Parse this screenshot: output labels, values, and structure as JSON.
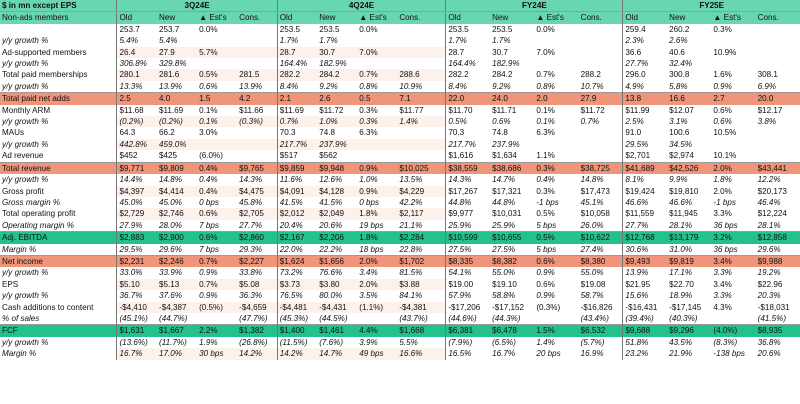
{
  "header": {
    "corner": "$ in mn except EPS",
    "groups": [
      "3Q24E",
      "4Q24E",
      "FY24E",
      "FY25E"
    ],
    "cols": [
      "Old",
      "New",
      "▲ Est's",
      "Cons."
    ]
  },
  "rows": [
    {
      "label": "Non-ads members",
      "style": "normal",
      "v": [
        "253.7",
        "253.7",
        "0.0%",
        "",
        "253.5",
        "253.5",
        "0.0%",
        "",
        "253.5",
        "253.5",
        "0.0%",
        "",
        "259.4",
        "260.2",
        "0.3%",
        ""
      ]
    },
    {
      "label": "y/y growth %",
      "style": "growth",
      "v": [
        "5.4%",
        "5.4%",
        "",
        "",
        "1.7%",
        "1.7%",
        "",
        "",
        "1.7%",
        "1.7%",
        "",
        "",
        "2.3%",
        "2.6%",
        "",
        ""
      ]
    },
    {
      "label": "Ad-supported members",
      "style": "normal",
      "v": [
        "26.4",
        "27.9",
        "5.7%",
        "",
        "28.7",
        "30.7",
        "7.0%",
        "",
        "28.7",
        "30.7",
        "7.0%",
        "",
        "36.6",
        "40.6",
        "10.9%",
        ""
      ]
    },
    {
      "label": "y/y growth %",
      "style": "growth",
      "v": [
        "306.8%",
        "329.8%",
        "",
        "",
        "164.4%",
        "182.9%",
        "",
        "",
        "164.4%",
        "182.9%",
        "",
        "",
        "27.7%",
        "32.4%",
        "",
        ""
      ]
    },
    {
      "label": "Total paid memberships",
      "style": "normal",
      "v": [
        "280.1",
        "281.6",
        "0.5%",
        "281.5",
        "282.2",
        "284.2",
        "0.7%",
        "288.6",
        "282.2",
        "284.2",
        "0.7%",
        "288.2",
        "296.0",
        "300.8",
        "1.6%",
        "308.1"
      ]
    },
    {
      "label": "y/y growth %",
      "style": "growth",
      "v": [
        "13.3%",
        "13.9%",
        "0.6%",
        "13.9%",
        "8.4%",
        "9.2%",
        "0.8%",
        "10.9%",
        "8.4%",
        "9.2%",
        "0.8%",
        "10.7%",
        "4.9%",
        "5.8%",
        "0.9%",
        "6.9%"
      ]
    },
    {
      "label": "Total paid net adds",
      "style": "hl-orange",
      "v": [
        "2.5",
        "4.0",
        "1.5",
        "4.2",
        "2.1",
        "2.6",
        "0.5",
        "7.1",
        "22.0",
        "24.0",
        "2.0",
        "27.9",
        "13.8",
        "16.6",
        "2.7",
        "20.0"
      ]
    },
    {
      "label": "Monthly ARM",
      "style": "normal",
      "v": [
        "$11.68",
        "$11.69",
        "0.1%",
        "$11.66",
        "$11.69",
        "$11.72",
        "0.3%",
        "$11.77",
        "$11.70",
        "$11.71",
        "0.1%",
        "$11.72",
        "$11.99",
        "$12.07",
        "0.6%",
        "$12.17"
      ]
    },
    {
      "label": "y/y growth %",
      "style": "growth",
      "v": [
        "(0.2%)",
        "(0.2%)",
        "0.1%",
        "(0.3%)",
        "0.7%",
        "1.0%",
        "0.3%",
        "1.4%",
        "0.5%",
        "0.6%",
        "0.1%",
        "0.7%",
        "2.5%",
        "3.1%",
        "0.6%",
        "3.8%"
      ]
    },
    {
      "label": "MAUs",
      "style": "normal",
      "v": [
        "64.3",
        "66.2",
        "3.0%",
        "",
        "70.3",
        "74.8",
        "6.3%",
        "",
        "70.3",
        "74.8",
        "6.3%",
        "",
        "91.0",
        "100.6",
        "10.5%",
        ""
      ]
    },
    {
      "label": "y/y growth %",
      "style": "growth",
      "v": [
        "442.8%",
        "459.0%",
        "",
        "",
        "217.7%",
        "237.9%",
        "",
        "",
        "217.7%",
        "237.9%",
        "",
        "",
        "29.5%",
        "34.5%",
        "",
        ""
      ]
    },
    {
      "label": "Ad revenue",
      "style": "normal",
      "v": [
        "$452",
        "$425",
        "(6.0%)",
        "",
        "$517",
        "$562",
        "",
        "",
        "$1,616",
        "$1,634",
        "1.1%",
        "",
        "$2,701",
        "$2,974",
        "10.1%",
        ""
      ]
    },
    {
      "label": "Total revenue",
      "style": "hl-orange",
      "v": [
        "$9,771",
        "$9,809",
        "0.4%",
        "$9,765",
        "$9,859",
        "$9,948",
        "0.9%",
        "$10,025",
        "$38,559",
        "$38,686",
        "0.3%",
        "$38,725",
        "$41,689",
        "$42,526",
        "2.0%",
        "$43,441"
      ]
    },
    {
      "label": "y/y growth %",
      "style": "growth",
      "v": [
        "14.4%",
        "14.8%",
        "0.4%",
        "14.3%",
        "11.6%",
        "12.6%",
        "1.0%",
        "13.5%",
        "14.3%",
        "14.7%",
        "0.4%",
        "14.8%",
        "8.1%",
        "9.9%",
        "1.8%",
        "12.2%"
      ]
    },
    {
      "label": "Gross profit",
      "style": "normal",
      "v": [
        "$4,397",
        "$4,414",
        "0.4%",
        "$4,475",
        "$4,091",
        "$4,128",
        "0.9%",
        "$4,229",
        "$17,267",
        "$17,321",
        "0.3%",
        "$17,473",
        "$19,424",
        "$19,810",
        "2.0%",
        "$20,173"
      ]
    },
    {
      "label": "Gross margin %",
      "style": "growth",
      "v": [
        "45.0%",
        "45.0%",
        "0 bps",
        "45.8%",
        "41.5%",
        "41.5%",
        "0 bps",
        "42.2%",
        "44.8%",
        "44.8%",
        "-1 bps",
        "45.1%",
        "46.6%",
        "46.6%",
        "-1 bps",
        "46.4%"
      ]
    },
    {
      "label": "Total operating profit",
      "style": "normal",
      "v": [
        "$2,729",
        "$2,746",
        "0.6%",
        "$2,705",
        "$2,012",
        "$2,049",
        "1.8%",
        "$2,117",
        "$9,977",
        "$10,031",
        "0.5%",
        "$10,058",
        "$11,559",
        "$11,945",
        "3.3%",
        "$12,224"
      ]
    },
    {
      "label": "Operating margin %",
      "style": "growth",
      "v": [
        "27.9%",
        "28.0%",
        "7 bps",
        "27.7%",
        "20.4%",
        "20.6%",
        "19 bps",
        "21.1%",
        "25.9%",
        "25.9%",
        "5 bps",
        "26.0%",
        "27.7%",
        "28.1%",
        "36 bps",
        "28.1%"
      ]
    },
    {
      "label": "Adj. EBITDA",
      "style": "hl-green",
      "v": [
        "$2,883",
        "$2,900",
        "0.6%",
        "$2,860",
        "$2,167",
        "$2,206",
        "1.8%",
        "$2,284",
        "$10,599",
        "$10,655",
        "0.5%",
        "$10,622",
        "$12,768",
        "$13,179",
        "3.2%",
        "$12,858"
      ]
    },
    {
      "label": "Margin %",
      "style": "growth",
      "v": [
        "29.5%",
        "29.6%",
        "7 bps",
        "29.3%",
        "22.0%",
        "22.2%",
        "18 bps",
        "22.8%",
        "27.5%",
        "27.5%",
        "5 bps",
        "27.4%",
        "30.6%",
        "31.0%",
        "36 bps",
        "29.6%"
      ]
    },
    {
      "label": "Net income",
      "style": "hl-orange",
      "v": [
        "$2,231",
        "$2,246",
        "0.7%",
        "$2,227",
        "$1,624",
        "$1,656",
        "2.0%",
        "$1,702",
        "$8,335",
        "$8,382",
        "0.6%",
        "$8,380",
        "$9,493",
        "$9,819",
        "3.4%",
        "$9,988"
      ]
    },
    {
      "label": "y/y growth %",
      "style": "growth",
      "v": [
        "33.0%",
        "33.9%",
        "0.9%",
        "33.8%",
        "73.2%",
        "76.6%",
        "3.4%",
        "81.5%",
        "54.1%",
        "55.0%",
        "0.9%",
        "55.0%",
        "13.9%",
        "17.1%",
        "3.3%",
        "19.2%"
      ]
    },
    {
      "label": "EPS",
      "style": "normal",
      "v": [
        "$5.10",
        "$5.13",
        "0.7%",
        "$5.08",
        "$3.73",
        "$3.80",
        "2.0%",
        "$3.88",
        "$19.00",
        "$19.10",
        "0.6%",
        "$19.08",
        "$21.95",
        "$22.70",
        "3.4%",
        "$22.96"
      ]
    },
    {
      "label": "y/y growth %",
      "style": "growth",
      "v": [
        "36.7%",
        "37.6%",
        "0.9%",
        "36.3%",
        "76.5%",
        "80.0%",
        "3.5%",
        "84.1%",
        "57.9%",
        "58.8%",
        "0.9%",
        "58.7%",
        "15.6%",
        "18.9%",
        "3.3%",
        "20.3%"
      ]
    },
    {
      "label": "Cash additions to content",
      "style": "normal",
      "v": [
        "-$4,410",
        "-$4,387",
        "(0.5%)",
        "-$4,659",
        "-$4,481",
        "-$4,431",
        "(1.1%)",
        "-$4,381",
        "-$17,206",
        "-$17,152",
        "(0.3%)",
        "-$16,826",
        "-$16,431",
        "-$17,145",
        "4.3%",
        "-$18,031"
      ]
    },
    {
      "label": "% of sales",
      "style": "growth",
      "v": [
        "(45.1%)",
        "(44.7%)",
        "",
        "(47.7%)",
        "(45.3%)",
        "(44.5%)",
        "",
        "(43.7%)",
        "(44.6%)",
        "(44.3%)",
        "",
        "(43.4%)",
        "(39.4%)",
        "(40.3%)",
        "",
        "(41.5%)"
      ]
    },
    {
      "label": "FCF",
      "style": "hl-green",
      "v": [
        "$1,631",
        "$1,667",
        "2.2%",
        "$1,382",
        "$1,400",
        "$1,461",
        "4.4%",
        "$1,668",
        "$6,381",
        "$6,478",
        "1.5%",
        "$6,532",
        "$9,688",
        "$9,296",
        "(4.0%)",
        "$8,935"
      ]
    },
    {
      "label": "y/y growth %",
      "style": "growth",
      "v": [
        "(13.6%)",
        "(11.7%)",
        "1.9%",
        "(26.8%)",
        "(11.5%)",
        "(7.6%)",
        "3.9%",
        "5.5%",
        "(7.9%)",
        "(6.5%)",
        "1.4%",
        "(5.7%)",
        "51.8%",
        "43.5%",
        "(8.3%)",
        "36.8%"
      ]
    },
    {
      "label": "Margin %",
      "style": "growth",
      "v": [
        "16.7%",
        "17.0%",
        "30 bps",
        "14.2%",
        "14.2%",
        "14.7%",
        "49 bps",
        "16.6%",
        "16.5%",
        "16.7%",
        "20 bps",
        "16.9%",
        "23.2%",
        "21.9%",
        "-138 bps",
        "20.6%"
      ]
    }
  ],
  "colors": {
    "header_green": "#69d6b3",
    "highlight_green": "#23c28c",
    "highlight_orange": "#f0957a",
    "row_tint": "#fbe5dc"
  }
}
